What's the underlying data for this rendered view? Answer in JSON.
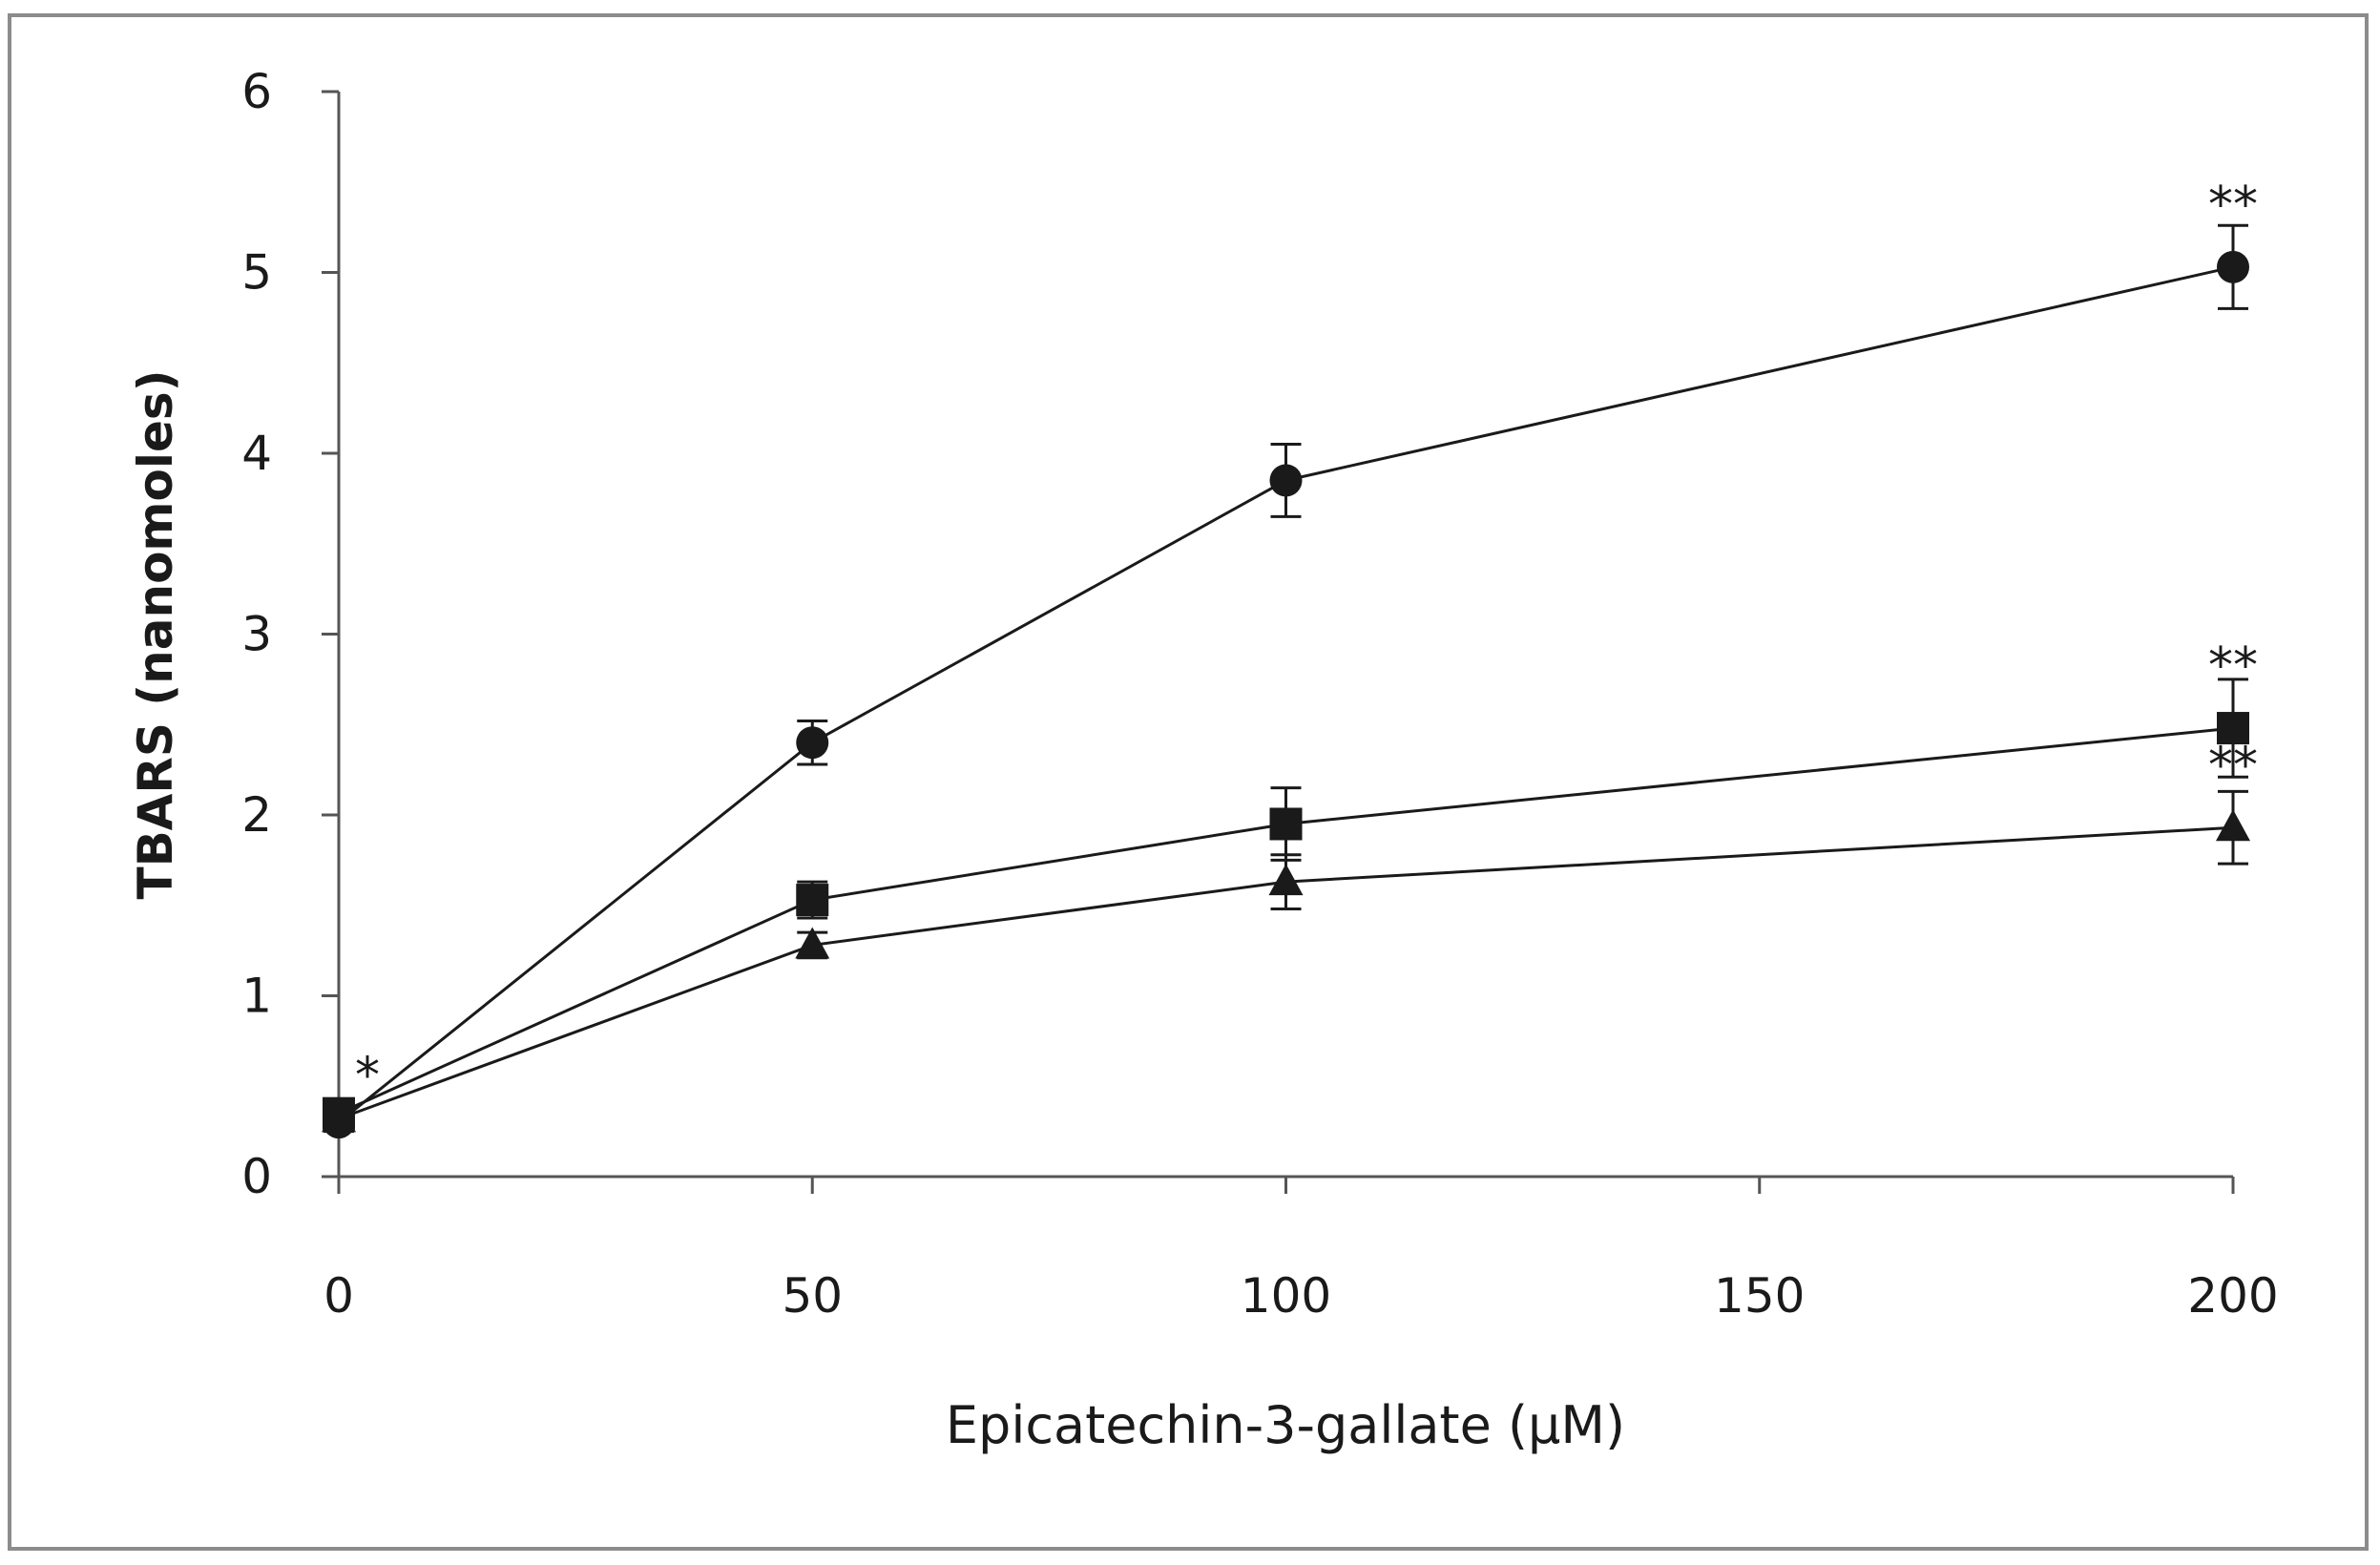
{
  "chart_data": {
    "type": "line",
    "title": "",
    "xlabel": "Epicatechin-3-gallate  (µM)",
    "ylabel": "TBARS (nanomoles)",
    "xlim": [
      0,
      200
    ],
    "ylim": [
      0,
      6
    ],
    "xticks": [
      0,
      50,
      100,
      150,
      200
    ],
    "yticks": [
      0,
      1,
      2,
      3,
      4,
      5,
      6
    ],
    "grid": false,
    "legend": "none",
    "x": [
      0,
      50,
      100,
      200
    ],
    "series": [
      {
        "marker": "circle",
        "values": [
          0.3,
          2.4,
          3.85,
          5.03
        ],
        "errors": [
          0.05,
          0.12,
          0.2,
          0.23
        ]
      },
      {
        "marker": "square",
        "values": [
          0.35,
          1.53,
          1.95,
          2.48
        ],
        "errors": [
          0.05,
          0.1,
          0.2,
          0.27
        ]
      },
      {
        "marker": "triangle",
        "values": [
          0.32,
          1.28,
          1.63,
          1.93
        ],
        "errors": [
          0.05,
          0.07,
          0.15,
          0.2
        ]
      }
    ],
    "annotations": [
      {
        "text": "*",
        "x": 0,
        "y": 0.35
      },
      {
        "text": "**",
        "x": 200,
        "y": 5.03
      },
      {
        "text": "**",
        "x": 200,
        "y": 2.48
      },
      {
        "text": "**",
        "x": 200,
        "y": 1.93
      }
    ],
    "colors": {
      "ink": "#1a1a1a",
      "frame": "#8c8c8c",
      "background": "#ffffff"
    }
  }
}
